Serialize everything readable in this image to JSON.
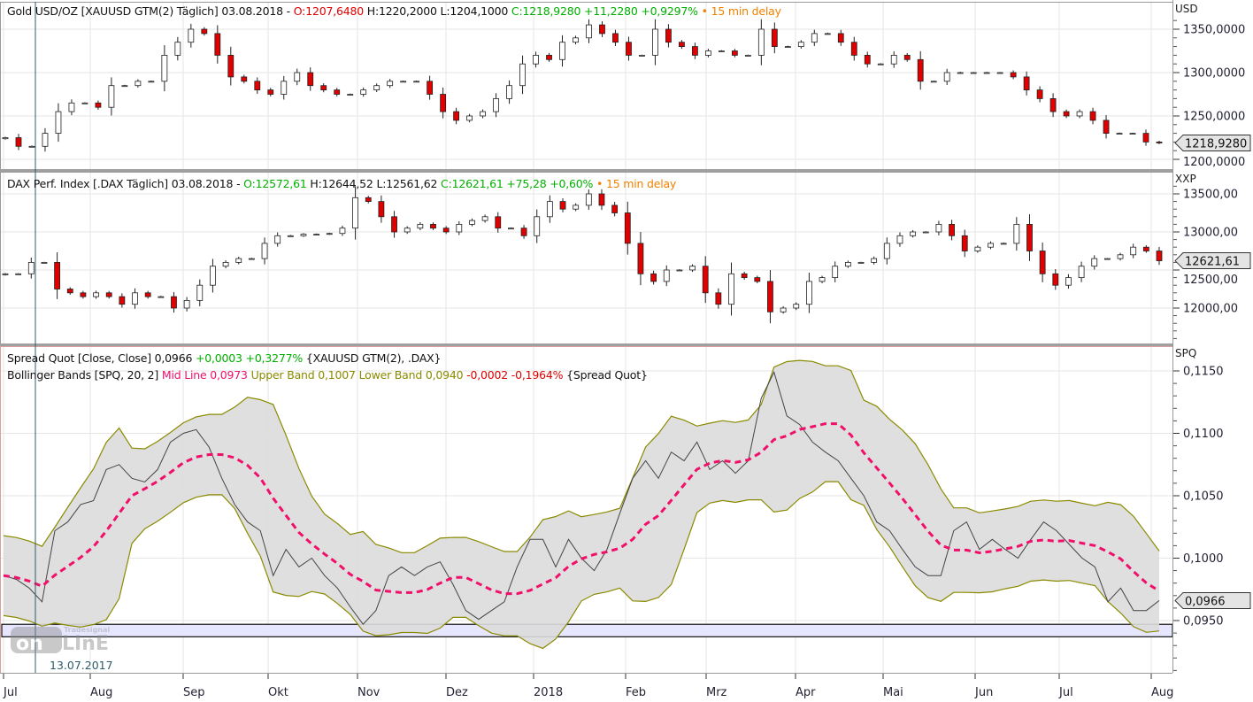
{
  "colors": {
    "up": "#ffffff",
    "down": "#e00000",
    "mid_line": "#f0106a",
    "band": "#8a8a00",
    "band_fill": "#dcdcdc",
    "ratio": "#444444",
    "box": "#e6e6ff"
  },
  "panels": [
    {
      "id": "gold",
      "unit": "USD",
      "legend": [
        {
          "text": "Gold USD/OZ [XAUUSD GTM(2) Täglich] 03.08.2018 - ",
          "c": "blk"
        },
        {
          "text": "O:1207,6480 ",
          "c": "red"
        },
        {
          "text": "H:1220,2000 L:1204,1000 ",
          "c": "blk"
        },
        {
          "text": "C:1218,9280 +11,2280 +0,9297% ",
          "c": "green"
        },
        {
          "text": "• 15 min delay",
          "c": "orange"
        }
      ],
      "last_label": "1218,9280",
      "last": 1218.928,
      "ticks": [
        "1350,0000",
        "1300,0000",
        "1250,0000",
        "1200,0000"
      ],
      "tick_values": [
        1350,
        1300,
        1250,
        1200
      ]
    },
    {
      "id": "dax",
      "unit": "XXP",
      "legend": [
        {
          "text": "DAX Perf. Index [.DAX Täglich] 03.08.2018 - ",
          "c": "blk"
        },
        {
          "text": "O:12572,61 ",
          "c": "green"
        },
        {
          "text": "H:12644,52 L:12561,62 ",
          "c": "blk"
        },
        {
          "text": "C:12621,61 +75,28 +0,60% ",
          "c": "green"
        },
        {
          "text": "• 15 min delay",
          "c": "orange"
        }
      ],
      "last_label": "12621,61",
      "last": 12621.61,
      "ticks": [
        "13500,00",
        "13000,00",
        "12500,00",
        "12000,00"
      ],
      "tick_values": [
        13500,
        13000,
        12500,
        12000
      ]
    },
    {
      "id": "spread",
      "unit": "SPQ",
      "legend": [
        {
          "text": "Spread Quot [Close, Close] ",
          "c": "blk"
        },
        {
          "text": "0,0966 ",
          "c": "blk"
        },
        {
          "text": "+0,0003 +0,3277% ",
          "c": "green"
        },
        {
          "text": "{XAUUSD GTM(2), .DAX}",
          "c": "blk"
        }
      ],
      "legend2": [
        {
          "text": "Bollinger Bands [SPQ, 20, 2] ",
          "c": "blk"
        },
        {
          "text": "Mid Line 0,0973 ",
          "c": "pink"
        },
        {
          "text": "Upper Band 0,1007 Lower Band 0,0940 ",
          "c": "olive"
        },
        {
          "text": "-0,0002 -0,1964% ",
          "c": "red"
        },
        {
          "text": "{Spread Quot}",
          "c": "blk"
        }
      ],
      "last_label": "0,0966",
      "last": 0.0966,
      "ticks": [
        "0,1150",
        "0,1100",
        "0,1050",
        "0,1000",
        "0,0950"
      ],
      "tick_values": [
        0.115,
        0.11,
        0.105,
        0.1,
        0.095
      ]
    }
  ],
  "cursor_date": "13.07.2017",
  "logo_text": "Tradesignal online",
  "chart_data": {
    "type": "candlestick+line",
    "x_labels": [
      "Jul",
      "Aug",
      "Sep",
      "Okt",
      "Nov",
      "Dez",
      "2018",
      "Feb",
      "Mrz",
      "Apr",
      "Mai",
      "Jun",
      "Jul",
      "Aug"
    ],
    "x_range": [
      "2017-07-03",
      "2018-08-03"
    ],
    "gold_close": [
      1225,
      1215,
      1215,
      1230,
      1255,
      1265,
      1265,
      1260,
      1285,
      1285,
      1290,
      1290,
      1320,
      1335,
      1350,
      1345,
      1320,
      1295,
      1290,
      1280,
      1275,
      1290,
      1300,
      1285,
      1280,
      1275,
      1275,
      1280,
      1285,
      1290,
      1290,
      1290,
      1275,
      1255,
      1245,
      1250,
      1255,
      1270,
      1285,
      1310,
      1320,
      1315,
      1335,
      1340,
      1355,
      1345,
      1335,
      1320,
      1320,
      1350,
      1335,
      1330,
      1320,
      1325,
      1325,
      1320,
      1320,
      1350,
      1330,
      1330,
      1335,
      1345,
      1345,
      1335,
      1320,
      1310,
      1310,
      1320,
      1315,
      1290,
      1290,
      1300,
      1300,
      1300,
      1300,
      1300,
      1295,
      1280,
      1270,
      1255,
      1250,
      1255,
      1245,
      1230,
      1230,
      1230,
      1220,
      1218.9
    ],
    "dax_close": [
      12450,
      12450,
      12600,
      12600,
      12250,
      12200,
      12150,
      12200,
      12150,
      12050,
      12200,
      12150,
      12150,
      12000,
      12100,
      12300,
      12550,
      12600,
      12650,
      12650,
      12850,
      12950,
      12950,
      12970,
      12970,
      12980,
      13050,
      13450,
      13400,
      13200,
      13000,
      13050,
      13100,
      13050,
      13000,
      13100,
      13150,
      13200,
      13050,
      13050,
      12950,
      13200,
      13400,
      13300,
      13350,
      13500,
      13350,
      13250,
      12850,
      12450,
      12350,
      12500,
      12500,
      12550,
      12200,
      12050,
      12450,
      12400,
      12350,
      11950,
      12000,
      12050,
      12350,
      12400,
      12550,
      12600,
      12600,
      12650,
      12850,
      12950,
      13000,
      13000,
      13100,
      12950,
      12750,
      12800,
      12850,
      12850,
      13100,
      12750,
      12450,
      12300,
      12400,
      12550,
      12650,
      12650,
      12700,
      12800,
      12750,
      12621.6
    ],
    "spread": [
      0.0986,
      0.0983,
      0.0976,
      0.0965,
      0.1022,
      0.1029,
      0.1043,
      0.1046,
      0.1071,
      0.1075,
      0.1064,
      0.1061,
      0.1071,
      0.1093,
      0.11,
      0.1103,
      0.1089,
      0.1064,
      0.1043,
      0.1029,
      0.1022,
      0.0986,
      0.1007,
      0.0993,
      0.1,
      0.0986,
      0.0976,
      0.0961,
      0.0947,
      0.0958,
      0.0986,
      0.0993,
      0.0986,
      0.0993,
      0.0997,
      0.0979,
      0.0958,
      0.0951,
      0.0958,
      0.0965,
      0.0993,
      0.1015,
      0.1015,
      0.0993,
      0.1015,
      0.1,
      0.099,
      0.1007,
      0.1036,
      0.1064,
      0.1078,
      0.1064,
      0.1085,
      0.1078,
      0.1093,
      0.1071,
      0.1078,
      0.1068,
      0.1078,
      0.1128,
      0.1149,
      0.1114,
      0.1107,
      0.1093,
      0.1085,
      0.1078,
      0.1064,
      0.105,
      0.1029,
      0.1022,
      0.1007,
      0.0993,
      0.0986,
      0.0986,
      0.1022,
      0.1029,
      0.1007,
      0.1015,
      0.1007,
      0.1,
      0.1015,
      0.1029,
      0.1022,
      0.1011,
      0.1,
      0.0993,
      0.0965,
      0.0976,
      0.0958,
      0.0958,
      0.0966
    ],
    "bollinger": {
      "period": 20,
      "stddev": 2
    },
    "zone": [
      0.0937,
      0.0947
    ],
    "ylim_gold": [
      1185,
      1375
    ],
    "ylim_dax": [
      11700,
      13700
    ],
    "ylim_spread": [
      0.0928,
      0.117
    ]
  }
}
